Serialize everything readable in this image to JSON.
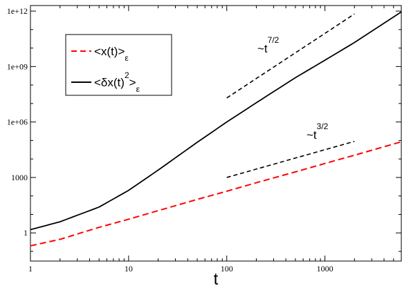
{
  "chart_data": {
    "type": "line",
    "xscale": "log",
    "yscale": "log",
    "xlabel": "t",
    "ylabel": "",
    "xlim": [
      1,
      6000
    ],
    "ylim": [
      0.03,
      2000000000000
    ],
    "x_ticks": [
      1,
      10,
      100,
      1000
    ],
    "x_tick_labels": [
      "1",
      "10",
      "100",
      "1000"
    ],
    "y_ticks": [
      1,
      1000,
      1000000,
      1000000000,
      1000000000000
    ],
    "y_tick_labels": [
      "1",
      "1000",
      "1e+06",
      "1e+09",
      "1e+12"
    ],
    "grid": false,
    "legend_position": "top-left",
    "legend": [
      {
        "text": "<x(t)>",
        "sub": "ε"
      },
      {
        "text": "<δx(t)",
        "sup": "2",
        "text_after": ">",
        "sub": "ε"
      }
    ],
    "series": [
      {
        "name": "<x(t)>ε",
        "style": "dashed",
        "color": "#ff0000",
        "x": [
          1,
          2,
          5,
          10,
          20,
          50,
          100,
          200,
          500,
          1000,
          2000,
          6000
        ],
        "y": [
          0.2,
          0.45,
          2,
          5.5,
          16,
          65,
          180,
          520,
          2000,
          5700,
          16000,
          85000
        ]
      },
      {
        "name": "<δx(t)2>ε",
        "style": "solid",
        "color": "#000000",
        "x": [
          1,
          2,
          5,
          10,
          20,
          50,
          100,
          200,
          500,
          1000,
          2000,
          6000
        ],
        "y": [
          1.5,
          4,
          25,
          200,
          2500,
          80000,
          1000000,
          11000000,
          250000000,
          2200000000,
          20000000000,
          900000000000
        ]
      },
      {
        "name": "guide t^(7/2)",
        "style": "dashed",
        "color": "#000000",
        "x": [
          100,
          2000
        ],
        "y": [
          20000000,
          700000000000
        ]
      },
      {
        "name": "guide t^(3/2)",
        "style": "dashed",
        "color": "#000000",
        "x": [
          100,
          2000
        ],
        "y": [
          1000,
          90000
        ]
      }
    ],
    "annotations": [
      {
        "base": "~t",
        "sup": "7/2"
      },
      {
        "base": "~t",
        "sup": "3/2"
      }
    ]
  }
}
